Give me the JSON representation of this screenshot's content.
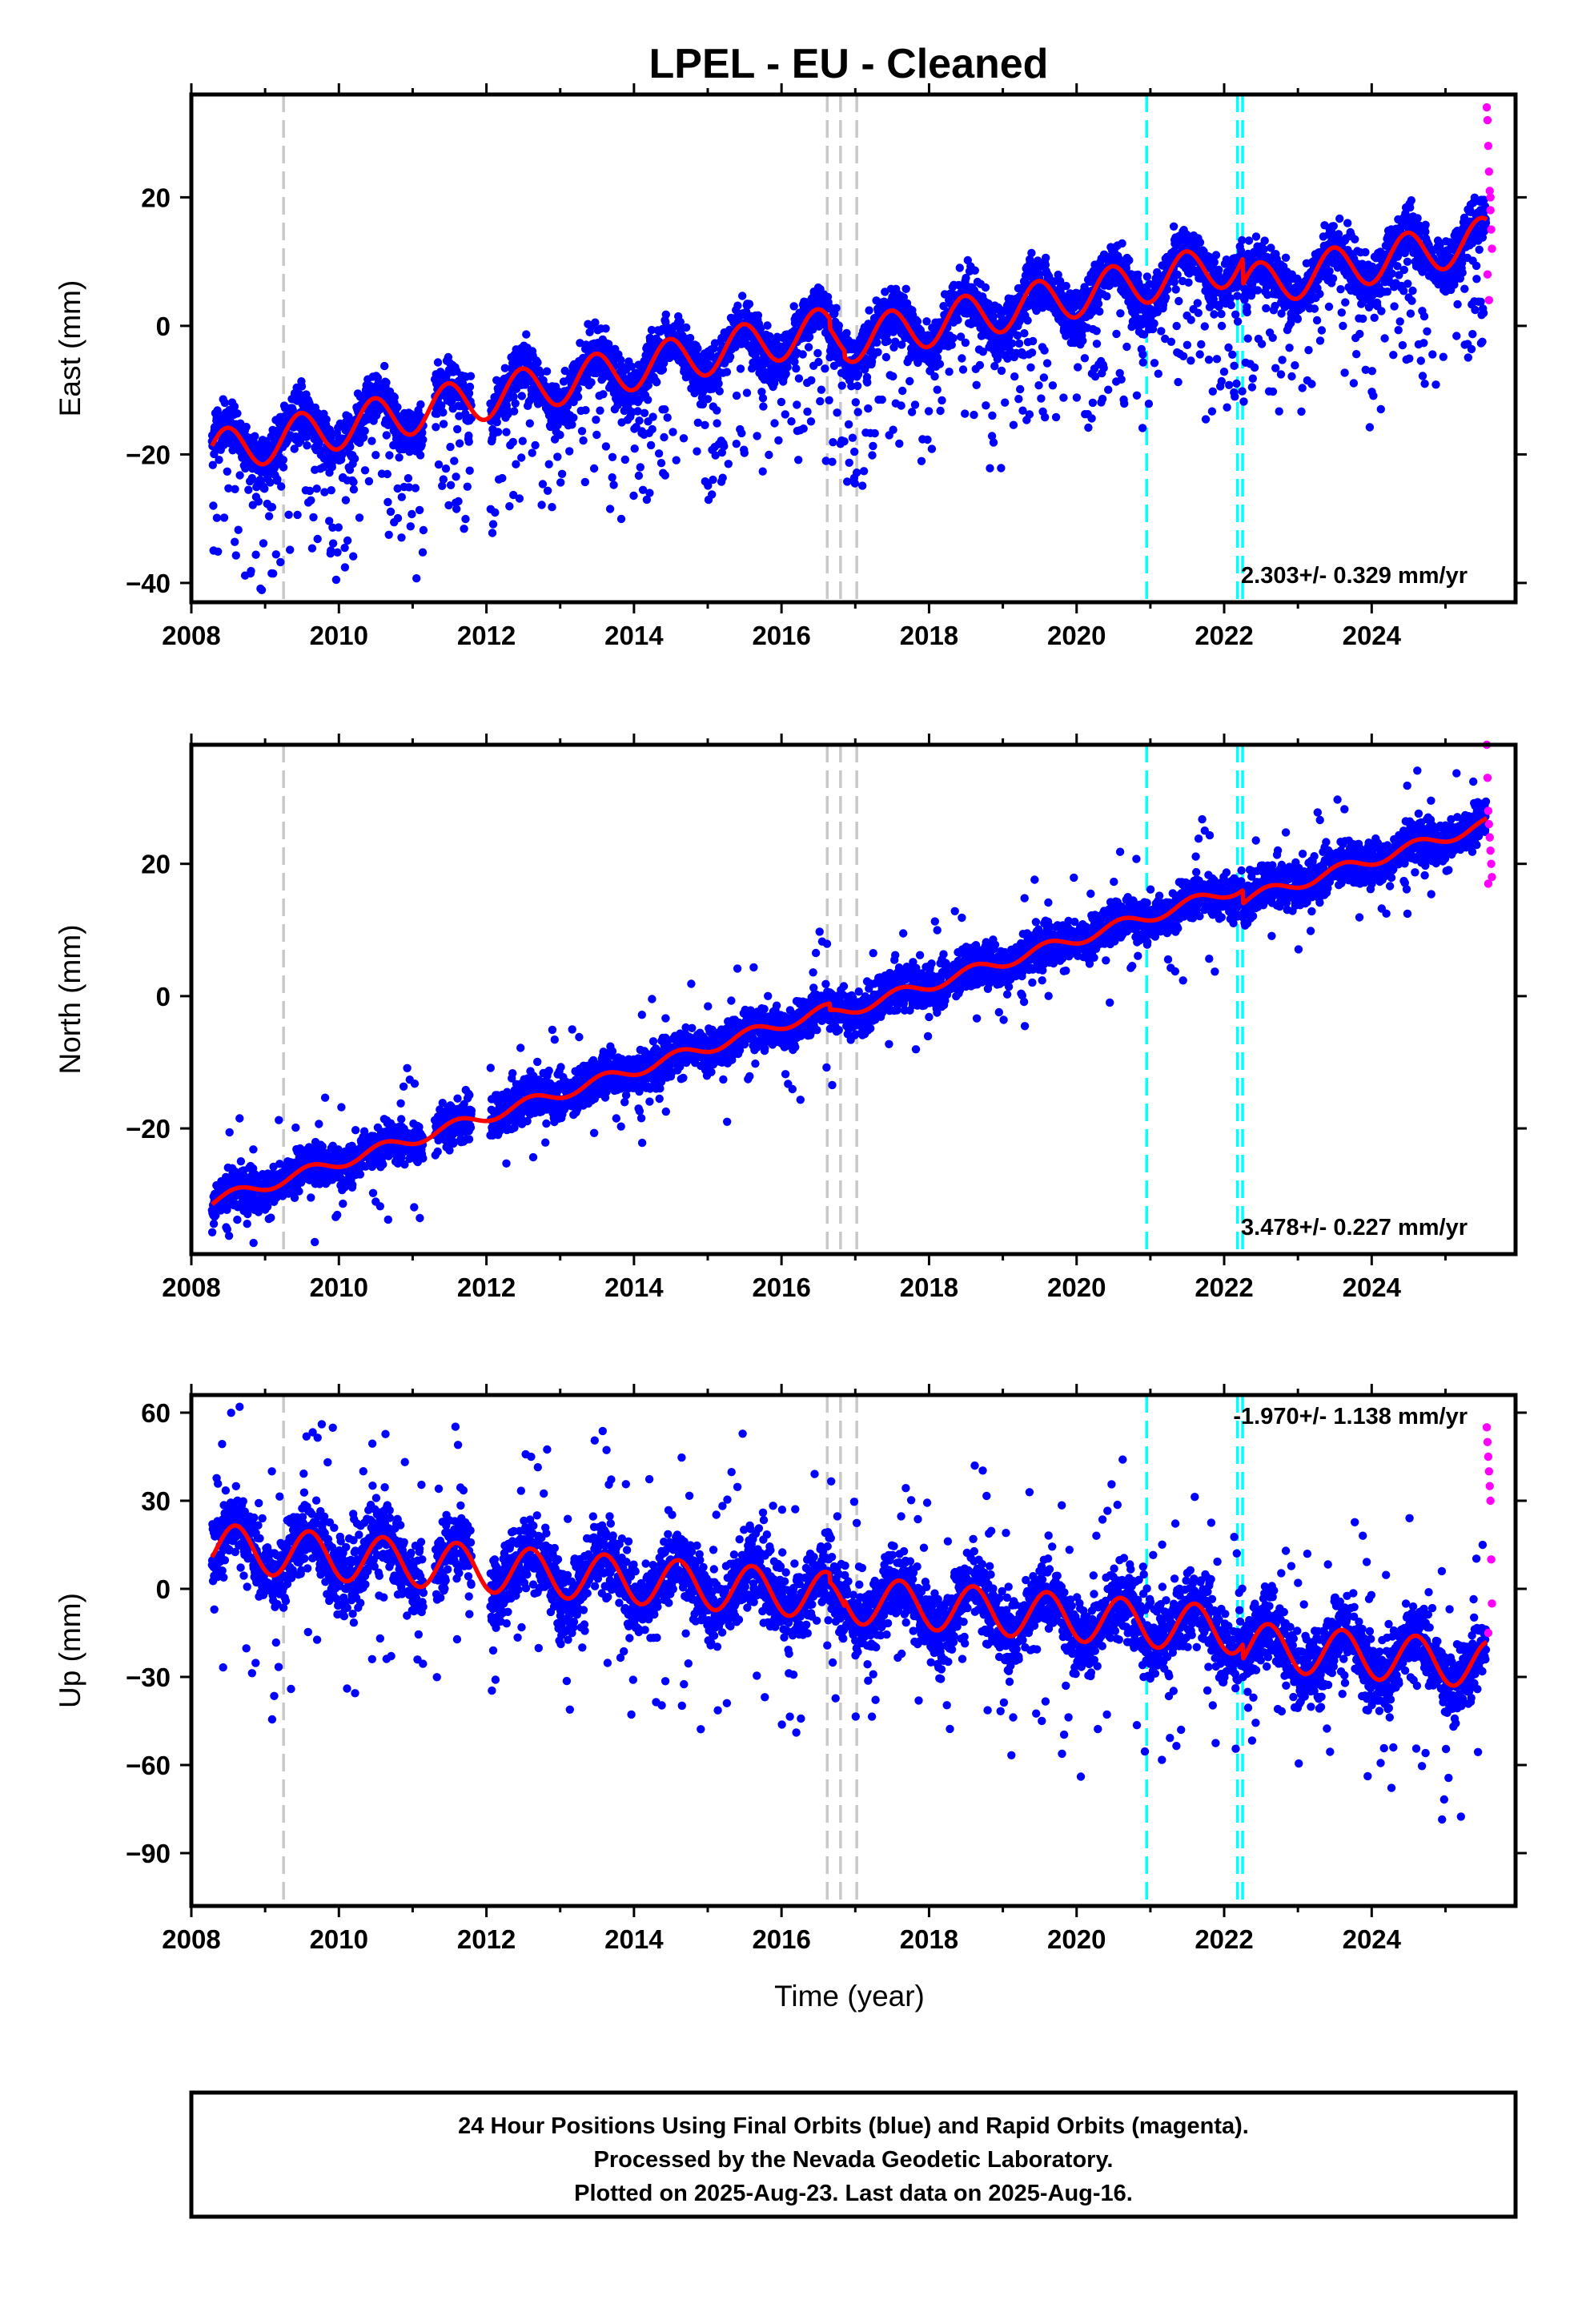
{
  "page": {
    "title": "LPEL  - EU - Cleaned"
  },
  "chart_data": [
    {
      "type": "scatter",
      "component": "East",
      "ylabel": "East (mm)",
      "xlabel": "",
      "xlim": [
        2008.0,
        2025.95
      ],
      "ylim": [
        -43,
        36
      ],
      "x_ticks": [
        2008,
        2010,
        2012,
        2014,
        2016,
        2018,
        2020,
        2022,
        2024
      ],
      "y_ticks": [
        -40,
        -20,
        0,
        20
      ],
      "x_tick_labels": [
        "2008",
        "2010",
        "2012",
        "2014",
        "2016",
        "2018",
        "2020",
        "2022",
        "2024"
      ],
      "y_tick_labels": [
        "−40",
        "−20",
        "0",
        "20"
      ],
      "rate_label": "2.303+/- 0.329 mm/yr",
      "trend": {
        "rate_mm_per_yr": 2.303,
        "value_at_2016_5": -0.8,
        "annual_amplitude": 3.4,
        "annual_phase_year_fraction": 0.48
      },
      "series": [
        {
          "name": "Final Orbits",
          "color": "#0000ff",
          "scatter_sd": 3.0,
          "outlier_fraction": 0.12,
          "outlier_direction": -1,
          "outlier_range": [
            5,
            20
          ]
        },
        {
          "name": "Rapid Orbits",
          "color": "#ff00ff",
          "x": [
            2025.56,
            2025.57,
            2025.58,
            2025.59,
            2025.6,
            2025.61,
            2025.62,
            2025.63,
            2025.57,
            2025.59,
            2025.61
          ],
          "y": [
            34,
            32,
            28,
            24,
            21,
            18,
            15,
            12,
            8,
            4,
            20
          ]
        }
      ],
      "steps": [
        {
          "x": 2016.65,
          "value": -1.5
        },
        {
          "x": 2016.85,
          "value": -1.0
        },
        {
          "x": 2022.25,
          "value": -4.0
        }
      ],
      "grey_dashed_lines": [
        2009.25,
        2016.62,
        2016.8,
        2017.02
      ],
      "cyan_dashed_lines": [
        2020.95,
        2022.18,
        2022.25
      ]
    },
    {
      "type": "scatter",
      "component": "North",
      "ylabel": "North (mm)",
      "xlabel": "",
      "xlim": [
        2008.0,
        2025.95
      ],
      "ylim": [
        -39,
        38
      ],
      "x_ticks": [
        2008,
        2010,
        2012,
        2014,
        2016,
        2018,
        2020,
        2022,
        2024
      ],
      "y_ticks": [
        -20,
        0,
        20
      ],
      "x_tick_labels": [
        "2008",
        "2010",
        "2012",
        "2014",
        "2016",
        "2018",
        "2020",
        "2022",
        "2024"
      ],
      "y_tick_labels": [
        "−20",
        "0",
        "20"
      ],
      "rate_label": "3.478+/- 0.227 mm/yr",
      "trend": {
        "rate_mm_per_yr": 3.478,
        "value_at_2016_5": -2.5,
        "annual_amplitude": 0.9,
        "annual_phase_year_fraction": 0.6
      },
      "series": [
        {
          "name": "Final Orbits",
          "color": "#0000ff",
          "scatter_sd": 2.3,
          "outlier_fraction": 0.03,
          "outlier_direction": 0,
          "outlier_range": [
            5,
            10
          ]
        },
        {
          "name": "Rapid Orbits",
          "color": "#ff00ff",
          "x": [
            2025.56,
            2025.57,
            2025.58,
            2025.59,
            2025.6,
            2025.61,
            2025.62,
            2025.63,
            2025.58
          ],
          "y": [
            38,
            33,
            28,
            26,
            24,
            22,
            20,
            18,
            17
          ]
        }
      ],
      "steps": [
        {
          "x": 2016.65,
          "value": -1.0
        },
        {
          "x": 2022.25,
          "value": -2.0
        }
      ],
      "grey_dashed_lines": [
        2009.25,
        2016.62,
        2016.8,
        2017.02
      ],
      "cyan_dashed_lines": [
        2020.95,
        2022.18,
        2022.25
      ]
    },
    {
      "type": "scatter",
      "component": "Up",
      "ylabel": "Up (mm)",
      "xlabel": "Time (year)",
      "xlim": [
        2008.0,
        2025.95
      ],
      "ylim": [
        -108,
        66
      ],
      "x_ticks": [
        2008,
        2010,
        2012,
        2014,
        2016,
        2018,
        2020,
        2022,
        2024
      ],
      "y_ticks": [
        -90,
        -60,
        -30,
        0,
        30,
        60
      ],
      "x_tick_labels": [
        "2008",
        "2010",
        "2012",
        "2014",
        "2016",
        "2018",
        "2020",
        "2022",
        "2024"
      ],
      "y_tick_labels": [
        "−90",
        "−60",
        "−30",
        "0",
        "30",
        "60"
      ],
      "rate_label": "-1.970+/- 1.138 mm/yr",
      "trend": {
        "rate_mm_per_yr": -1.97,
        "value_at_2016_5": -2.0,
        "annual_amplitude": 8.0,
        "annual_phase_year_fraction": 0.6
      },
      "series": [
        {
          "name": "Final Orbits",
          "color": "#0000ff",
          "scatter_sd": 9.0,
          "outlier_fraction": 0.05,
          "outlier_direction": 0,
          "outlier_range": [
            15,
            40
          ]
        },
        {
          "name": "Rapid Orbits",
          "color": "#ff00ff",
          "x": [
            2025.56,
            2025.57,
            2025.58,
            2025.59,
            2025.6,
            2025.61,
            2025.62,
            2025.63,
            2025.58
          ],
          "y": [
            55,
            50,
            45,
            40,
            35,
            30,
            10,
            -5,
            -15
          ]
        }
      ],
      "steps": [
        {
          "x": 2016.65,
          "value": -3.0
        },
        {
          "x": 2016.85,
          "value": 2.0
        },
        {
          "x": 2022.25,
          "value": -5.0
        }
      ],
      "grey_dashed_lines": [
        2009.25,
        2016.62,
        2016.8,
        2017.02
      ],
      "cyan_dashed_lines": [
        2020.95,
        2022.18,
        2022.25
      ]
    }
  ],
  "data_gaps": [
    [
      2011.15,
      2011.3
    ],
    [
      2011.8,
      2012.05
    ]
  ],
  "footer": {
    "line1": "24 Hour Positions Using Final Orbits (blue) and Rapid Orbits (magenta).",
    "line2": "Processed by the Nevada Geodetic Laboratory.",
    "line3": "Plotted on 2025-Aug-23. Last data on 2025-Aug-16."
  }
}
